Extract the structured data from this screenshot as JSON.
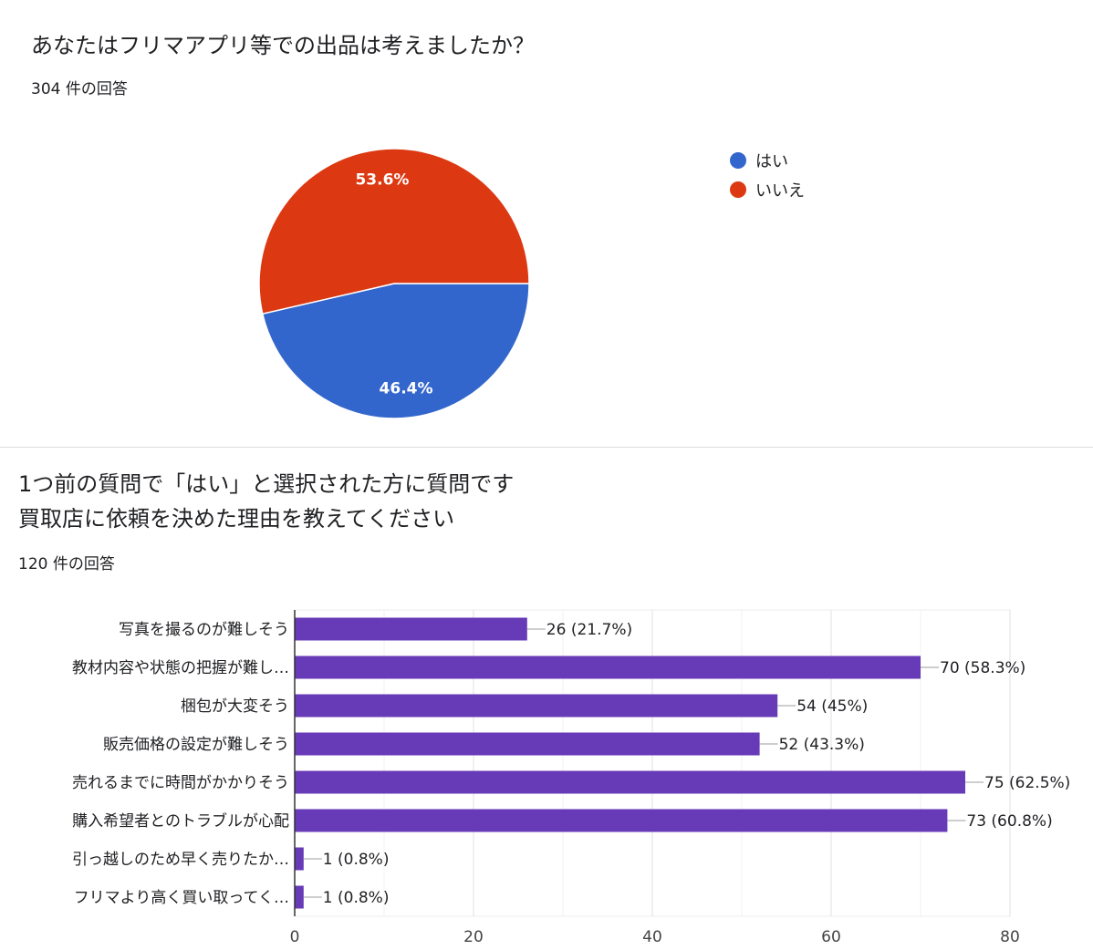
{
  "question1": {
    "title": "あなたはフリマアプリ等での出品は考えましたか？",
    "response_count": "304 件の回答"
  },
  "question2": {
    "title_line1": "1つ前の質問で「はい」と選択された方に質問です",
    "title_line2": "買取店に依頼を決めた理由を教えてください",
    "response_count": "120 件の回答"
  },
  "chart_data": [
    {
      "type": "pie",
      "slices": [
        {
          "label": "はい",
          "percent": 46.4,
          "label_text": "46.4%",
          "color": "#3366cc"
        },
        {
          "label": "いいえ",
          "percent": 53.6,
          "label_text": "53.6%",
          "color": "#dc3912"
        }
      ],
      "legend_position": "right"
    },
    {
      "type": "bar",
      "orientation": "horizontal",
      "color": "#673ab7",
      "categories": [
        "写真を撮るのが難しそう",
        "教材内容や状態の把握が難し…",
        "梱包が大変そう",
        "販売価格の設定が難しそう",
        "売れるまでに時間がかかりそう",
        "購入希望者とのトラブルが心配",
        "引っ越しのため早く売りたか…",
        "フリマより高く買い取ってく…"
      ],
      "values": [
        26,
        70,
        54,
        52,
        75,
        73,
        1,
        1
      ],
      "data_labels": [
        "26 (21.7%)",
        "70 (58.3%)",
        "54 (45%)",
        "52 (43.3%)",
        "75 (62.5%)",
        "73 (60.8%)",
        "1 (0.8%)",
        "1 (0.8%)"
      ],
      "xlim": [
        0,
        80
      ],
      "xticks": [
        "0",
        "20",
        "40",
        "60",
        "80"
      ],
      "grid": true
    }
  ]
}
